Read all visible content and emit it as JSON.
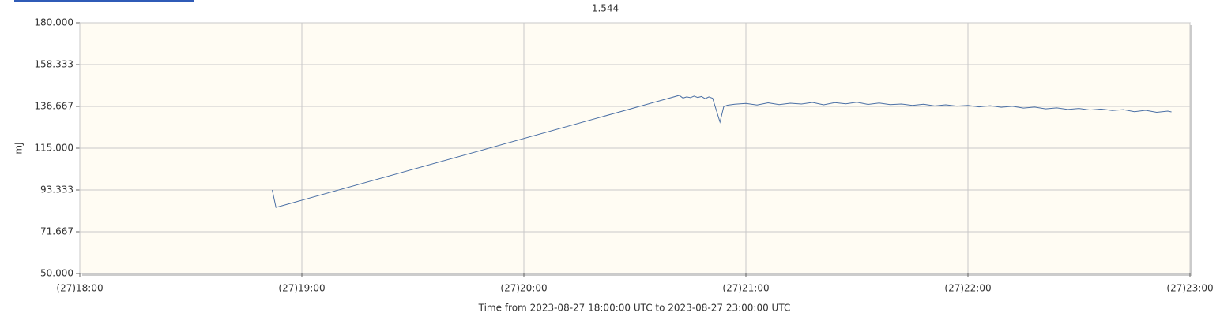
{
  "chart_data": {
    "type": "line",
    "title": "1.544",
    "ylabel": "mJ",
    "xlabel": "Time from 2023-08-27 18:00:00 UTC to 2023-08-27 23:00:00 UTC",
    "color": "#4a6fa5",
    "grid": true,
    "xlim": [
      "2023-08-27 18:00",
      "2023-08-27 23:00"
    ],
    "xticks": [
      {
        "value": "2023-08-27 18:00",
        "label": "(27)18:00"
      },
      {
        "value": "2023-08-27 19:00",
        "label": "(27)19:00"
      },
      {
        "value": "2023-08-27 20:00",
        "label": "(27)20:00"
      },
      {
        "value": "2023-08-27 21:00",
        "label": "(27)21:00"
      },
      {
        "value": "2023-08-27 22:00",
        "label": "(27)22:00"
      },
      {
        "value": "2023-08-27 23:00",
        "label": "(27)23:00"
      }
    ],
    "ylim": [
      50,
      180
    ],
    "yticks": [
      {
        "value": 50,
        "label": "50.000"
      },
      {
        "value": 71.667,
        "label": "71.667"
      },
      {
        "value": 93.333,
        "label": "93.333"
      },
      {
        "value": 115,
        "label": "115.000"
      },
      {
        "value": 136.667,
        "label": "136.667"
      },
      {
        "value": 158.333,
        "label": "158.333"
      },
      {
        "value": 180,
        "label": "180.000"
      }
    ],
    "x": [
      "2023-08-27 18:52",
      "2023-08-27 18:53",
      "2023-08-27 20:42",
      "2023-08-27 20:43",
      "2023-08-27 20:44",
      "2023-08-27 20:45",
      "2023-08-27 20:46",
      "2023-08-27 20:47",
      "2023-08-27 20:48",
      "2023-08-27 20:49",
      "2023-08-27 20:50",
      "2023-08-27 20:51",
      "2023-08-27 20:53",
      "2023-08-27 20:54",
      "2023-08-27 20:55",
      "2023-08-27 20:57",
      "2023-08-27 21:00",
      "2023-08-27 21:03",
      "2023-08-27 21:06",
      "2023-08-27 21:09",
      "2023-08-27 21:12",
      "2023-08-27 21:15",
      "2023-08-27 21:18",
      "2023-08-27 21:21",
      "2023-08-27 21:24",
      "2023-08-27 21:27",
      "2023-08-27 21:30",
      "2023-08-27 21:33",
      "2023-08-27 21:36",
      "2023-08-27 21:39",
      "2023-08-27 21:42",
      "2023-08-27 21:45",
      "2023-08-27 21:48",
      "2023-08-27 21:51",
      "2023-08-27 21:54",
      "2023-08-27 21:57",
      "2023-08-27 22:00",
      "2023-08-27 22:03",
      "2023-08-27 22:06",
      "2023-08-27 22:09",
      "2023-08-27 22:12",
      "2023-08-27 22:15",
      "2023-08-27 22:18",
      "2023-08-27 22:21",
      "2023-08-27 22:24",
      "2023-08-27 22:27",
      "2023-08-27 22:30",
      "2023-08-27 22:33",
      "2023-08-27 22:36",
      "2023-08-27 22:39",
      "2023-08-27 22:42",
      "2023-08-27 22:45",
      "2023-08-27 22:48",
      "2023-08-27 22:51",
      "2023-08-27 22:54",
      "2023-08-27 22:55"
    ],
    "values": [
      93.3,
      84.3,
      142.4,
      141.0,
      141.6,
      141.2,
      142.0,
      141.3,
      141.8,
      140.7,
      141.6,
      140.9,
      128.5,
      136.5,
      137.3,
      137.8,
      138.2,
      137.4,
      138.5,
      137.6,
      138.3,
      137.9,
      138.7,
      137.5,
      138.6,
      138.0,
      138.8,
      137.7,
      138.4,
      137.6,
      137.9,
      137.2,
      137.8,
      136.9,
      137.5,
      136.8,
      137.2,
      136.4,
      137.0,
      136.2,
      136.7,
      135.8,
      136.3,
      135.4,
      135.9,
      135.1,
      135.6,
      134.8,
      135.3,
      134.5,
      135.0,
      133.9,
      134.6,
      133.6,
      134.2,
      133.8
    ]
  }
}
